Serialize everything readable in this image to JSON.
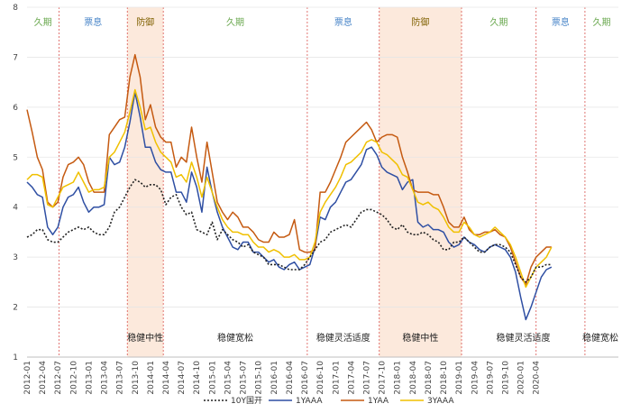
{
  "chart_data": {
    "type": "line",
    "title": "",
    "xlabel": "",
    "ylabel": "",
    "ylim": [
      1,
      8
    ],
    "yticks": [
      1,
      2,
      3,
      4,
      5,
      6,
      7,
      8
    ],
    "x_start": "2012-01",
    "n_months": 103,
    "x_tick_labels": [
      "2012-01",
      "2012-04",
      "2012-07",
      "2012-10",
      "2013-01",
      "2013-04",
      "2013-07",
      "2013-10",
      "2014-01",
      "2014-04",
      "2014-07",
      "2014-10",
      "2015-01",
      "2015-04",
      "2015-07",
      "2015-10",
      "2016-01",
      "2016-04",
      "2016-07",
      "2016-10",
      "2017-01",
      "2017-04",
      "2017-07",
      "2017-10",
      "2018-01",
      "2018-04",
      "2018-07",
      "2018-10",
      "2019-01",
      "2019-04",
      "2019-07",
      "2019-10",
      "2020-01",
      "2020-04"
    ],
    "regions": [
      {
        "label": "久期",
        "start": 0,
        "end": 6.2,
        "color": "#6aa84f",
        "shaded": false
      },
      {
        "label": "票息",
        "start": 6.2,
        "end": 19.5,
        "color": "#4a86c8",
        "shaded": false
      },
      {
        "label": "防御",
        "start": 19.5,
        "end": 26.5,
        "color": "#7f6000",
        "shaded": true
      },
      {
        "label": "久期",
        "start": 26.5,
        "end": 54.5,
        "color": "#6aa84f",
        "shaded": false
      },
      {
        "label": "票息",
        "start": 54.5,
        "end": 68.5,
        "color": "#4a86c8",
        "shaded": false
      },
      {
        "label": "防御",
        "start": 68.5,
        "end": 84.5,
        "color": "#7f6000",
        "shaded": true
      },
      {
        "label": "久期",
        "start": 84.5,
        "end": 99,
        "color": "#6aa84f",
        "shaded": false
      },
      {
        "label": "票息",
        "start": 99,
        "end": 108.5,
        "color": "#4a86c8",
        "shaded": false
      },
      {
        "label": "久期",
        "start": 108.5,
        "end": 116,
        "color": "#6aa84f",
        "shaded": false
      }
    ],
    "policy_labels": [
      {
        "label": "稳健中性",
        "at": 23
      },
      {
        "label": "稳健宽松",
        "at": 40.5
      },
      {
        "label": "稳健灵活适度",
        "at": 61.5
      },
      {
        "label": "稳健中性",
        "at": 76.5
      },
      {
        "label": "稳健灵活适度",
        "at": 96.5
      },
      {
        "label": "稳健宽松",
        "at": 111.5
      }
    ],
    "series": [
      {
        "name": "10Y国开",
        "color": "#222222",
        "dash": true,
        "values": [
          3.4,
          3.45,
          3.55,
          3.55,
          3.35,
          3.3,
          3.3,
          3.4,
          3.5,
          3.55,
          3.6,
          3.55,
          3.6,
          3.5,
          3.45,
          3.45,
          3.6,
          3.9,
          4.0,
          4.2,
          4.4,
          4.55,
          4.5,
          4.4,
          4.45,
          4.45,
          4.35,
          4.05,
          4.2,
          4.25,
          4.0,
          3.85,
          3.9,
          3.55,
          3.5,
          3.45,
          3.7,
          3.35,
          3.55,
          3.45,
          3.35,
          3.3,
          3.2,
          3.25,
          3.1,
          3.05,
          3.0,
          2.85,
          2.85,
          2.85,
          2.8,
          2.75,
          2.75,
          2.75,
          2.85,
          3.0,
          3.15,
          3.3,
          3.35,
          3.5,
          3.55,
          3.6,
          3.65,
          3.6,
          3.75,
          3.9,
          3.95,
          3.95,
          3.9,
          3.85,
          3.75,
          3.6,
          3.55,
          3.65,
          3.5,
          3.45,
          3.45,
          3.5,
          3.45,
          3.35,
          3.3,
          3.15,
          3.15,
          3.3,
          3.3,
          3.4,
          3.3,
          3.2,
          3.1,
          3.1,
          3.2,
          3.25,
          3.25,
          3.2,
          3.1,
          2.85,
          2.6,
          2.5,
          2.6,
          2.8,
          2.8,
          2.85,
          2.85
        ]
      },
      {
        "name": "1YAAA",
        "color": "#2f4fa3",
        "dash": false,
        "values": [
          4.5,
          4.4,
          4.25,
          4.2,
          3.6,
          3.45,
          3.6,
          4.0,
          4.2,
          4.25,
          4.4,
          4.1,
          3.9,
          4.0,
          4.0,
          4.05,
          5.0,
          4.85,
          4.9,
          5.2,
          5.7,
          6.3,
          5.8,
          5.2,
          5.2,
          4.9,
          4.75,
          4.7,
          4.7,
          4.3,
          4.3,
          4.1,
          4.7,
          4.4,
          3.9,
          4.8,
          4.3,
          3.9,
          3.6,
          3.4,
          3.2,
          3.15,
          3.3,
          3.3,
          3.1,
          3.1,
          3.0,
          2.9,
          2.95,
          2.8,
          2.75,
          2.85,
          2.9,
          2.75,
          2.8,
          2.85,
          3.2,
          3.8,
          3.75,
          4.0,
          4.1,
          4.3,
          4.5,
          4.55,
          4.7,
          4.85,
          5.15,
          5.2,
          5.05,
          4.8,
          4.7,
          4.65,
          4.6,
          4.35,
          4.5,
          4.55,
          3.7,
          3.6,
          3.65,
          3.55,
          3.55,
          3.5,
          3.3,
          3.2,
          3.25,
          3.4,
          3.3,
          3.25,
          3.15,
          3.1,
          3.2,
          3.25,
          3.2,
          3.15,
          3.0,
          2.7,
          2.2,
          1.75,
          2.0,
          2.3,
          2.6,
          2.75,
          2.8
        ]
      },
      {
        "name": "1YAA",
        "color": "#c55a11",
        "dash": false,
        "values": [
          5.95,
          5.5,
          5.0,
          4.75,
          4.1,
          4.0,
          4.1,
          4.6,
          4.85,
          4.9,
          5.0,
          4.85,
          4.5,
          4.3,
          4.3,
          4.3,
          5.45,
          5.6,
          5.75,
          5.8,
          6.6,
          7.05,
          6.6,
          5.75,
          6.05,
          5.6,
          5.4,
          5.3,
          5.3,
          4.8,
          5.0,
          4.9,
          5.6,
          5.0,
          4.5,
          5.3,
          4.7,
          4.1,
          3.9,
          3.75,
          3.9,
          3.8,
          3.6,
          3.6,
          3.5,
          3.35,
          3.3,
          3.3,
          3.5,
          3.4,
          3.4,
          3.45,
          3.75,
          3.15,
          3.1,
          3.1,
          3.15,
          4.3,
          4.3,
          4.5,
          4.75,
          5.0,
          5.3,
          5.4,
          5.5,
          5.6,
          5.7,
          5.55,
          5.3,
          5.4,
          5.45,
          5.45,
          5.4,
          5.0,
          4.7,
          4.35,
          4.3,
          4.3,
          4.3,
          4.25,
          4.25,
          4.0,
          3.7,
          3.6,
          3.6,
          3.8,
          3.55,
          3.45,
          3.45,
          3.5,
          3.5,
          3.55,
          3.45,
          3.4,
          3.2,
          2.9,
          2.6,
          2.45,
          2.8,
          3.0,
          3.1,
          3.2,
          3.2
        ]
      },
      {
        "name": "3YAAA",
        "color": "#f0c000",
        "dash": false,
        "values": [
          4.55,
          4.65,
          4.65,
          4.6,
          4.05,
          4.0,
          4.2,
          4.4,
          4.45,
          4.5,
          4.7,
          4.5,
          4.3,
          4.35,
          4.35,
          4.4,
          5.0,
          5.1,
          5.3,
          5.5,
          5.9,
          6.35,
          6.0,
          5.55,
          5.6,
          5.3,
          5.1,
          5.0,
          4.9,
          4.6,
          4.65,
          4.5,
          4.9,
          4.6,
          4.2,
          4.6,
          4.3,
          4.0,
          3.75,
          3.6,
          3.5,
          3.5,
          3.45,
          3.45,
          3.3,
          3.2,
          3.2,
          3.1,
          3.15,
          3.1,
          3.0,
          3.0,
          3.05,
          2.95,
          2.95,
          3.0,
          3.3,
          3.9,
          4.1,
          4.25,
          4.4,
          4.6,
          4.85,
          4.9,
          5.0,
          5.1,
          5.3,
          5.35,
          5.3,
          5.1,
          5.05,
          4.95,
          4.85,
          4.65,
          4.6,
          4.35,
          4.1,
          4.05,
          4.1,
          4.0,
          3.95,
          3.8,
          3.6,
          3.5,
          3.5,
          3.7,
          3.6,
          3.45,
          3.4,
          3.45,
          3.5,
          3.6,
          3.5,
          3.4,
          3.25,
          3.0,
          2.7,
          2.4,
          2.6,
          2.8,
          2.9,
          3.0,
          3.2
        ]
      }
    ]
  }
}
